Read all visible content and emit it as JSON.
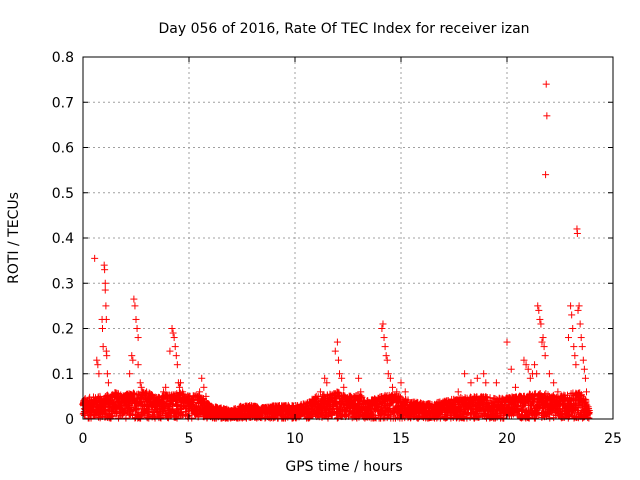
{
  "chart_data": {
    "type": "scatter",
    "title": "Day 056 of 2016, Rate Of TEC Index for receiver izan",
    "xlabel": "GPS time / hours",
    "ylabel": "ROTI / TECUs",
    "xlim": [
      0,
      25
    ],
    "ylim": [
      0,
      0.8
    ],
    "x_ticks": [
      0,
      5,
      10,
      15,
      20,
      25
    ],
    "y_ticks": [
      0,
      0.1,
      0.2,
      0.3,
      0.4,
      0.5,
      0.6,
      0.7,
      0.8
    ],
    "x_tick_labels": [
      "0",
      "5",
      "10",
      "15",
      "20",
      "25"
    ],
    "y_tick_labels": [
      "0",
      "0.1",
      "0.2",
      "0.3",
      "0.4",
      "0.5",
      "0.6",
      "0.7",
      "0.8"
    ],
    "grid": true,
    "marker": "+",
    "marker_color": "#ff0000",
    "points": [
      [
        0.55,
        0.355
      ],
      [
        0.65,
        0.13
      ],
      [
        0.7,
        0.12
      ],
      [
        0.75,
        0.1
      ],
      [
        0.8,
        0.05
      ],
      [
        0.9,
        0.22
      ],
      [
        0.92,
        0.2
      ],
      [
        0.95,
        0.16
      ],
      [
        1.0,
        0.34
      ],
      [
        1.02,
        0.33
      ],
      [
        1.05,
        0.3
      ],
      [
        1.05,
        0.285
      ],
      [
        1.08,
        0.25
      ],
      [
        1.1,
        0.22
      ],
      [
        1.1,
        0.15
      ],
      [
        1.12,
        0.14
      ],
      [
        1.15,
        0.1
      ],
      [
        1.2,
        0.08
      ],
      [
        1.3,
        0.04
      ],
      [
        1.5,
        0.05
      ],
      [
        2.2,
        0.1
      ],
      [
        2.3,
        0.14
      ],
      [
        2.35,
        0.13
      ],
      [
        2.4,
        0.265
      ],
      [
        2.45,
        0.25
      ],
      [
        2.5,
        0.22
      ],
      [
        2.55,
        0.2
      ],
      [
        2.6,
        0.18
      ],
      [
        2.6,
        0.12
      ],
      [
        2.7,
        0.08
      ],
      [
        2.75,
        0.07
      ],
      [
        2.8,
        0.06
      ],
      [
        3.0,
        0.06
      ],
      [
        3.2,
        0.05
      ],
      [
        3.8,
        0.06
      ],
      [
        3.9,
        0.07
      ],
      [
        4.1,
        0.15
      ],
      [
        4.2,
        0.2
      ],
      [
        4.25,
        0.19
      ],
      [
        4.3,
        0.18
      ],
      [
        4.35,
        0.16
      ],
      [
        4.4,
        0.14
      ],
      [
        4.45,
        0.12
      ],
      [
        4.5,
        0.08
      ],
      [
        4.55,
        0.07
      ],
      [
        4.6,
        0.08
      ],
      [
        4.7,
        0.06
      ],
      [
        5.5,
        0.06
      ],
      [
        5.6,
        0.09
      ],
      [
        5.7,
        0.07
      ],
      [
        5.8,
        0.05
      ],
      [
        11.0,
        0.05
      ],
      [
        11.2,
        0.06
      ],
      [
        11.4,
        0.09
      ],
      [
        11.5,
        0.08
      ],
      [
        11.9,
        0.15
      ],
      [
        12.0,
        0.17
      ],
      [
        12.05,
        0.13
      ],
      [
        12.1,
        0.1
      ],
      [
        12.2,
        0.09
      ],
      [
        12.3,
        0.07
      ],
      [
        13.0,
        0.09
      ],
      [
        13.1,
        0.06
      ],
      [
        14.1,
        0.2
      ],
      [
        14.15,
        0.21
      ],
      [
        14.2,
        0.18
      ],
      [
        14.25,
        0.16
      ],
      [
        14.3,
        0.14
      ],
      [
        14.35,
        0.13
      ],
      [
        14.4,
        0.1
      ],
      [
        14.5,
        0.09
      ],
      [
        14.6,
        0.07
      ],
      [
        14.8,
        0.06
      ],
      [
        15.0,
        0.08
      ],
      [
        15.2,
        0.06
      ],
      [
        17.7,
        0.06
      ],
      [
        18.0,
        0.1
      ],
      [
        18.3,
        0.08
      ],
      [
        18.6,
        0.09
      ],
      [
        18.9,
        0.1
      ],
      [
        19.0,
        0.08
      ],
      [
        19.5,
        0.08
      ],
      [
        20.0,
        0.17
      ],
      [
        20.2,
        0.11
      ],
      [
        20.4,
        0.07
      ],
      [
        20.8,
        0.13
      ],
      [
        20.9,
        0.12
      ],
      [
        21.0,
        0.11
      ],
      [
        21.1,
        0.09
      ],
      [
        21.2,
        0.1
      ],
      [
        21.3,
        0.12
      ],
      [
        21.4,
        0.1
      ],
      [
        21.45,
        0.25
      ],
      [
        21.5,
        0.24
      ],
      [
        21.55,
        0.22
      ],
      [
        21.6,
        0.21
      ],
      [
        21.65,
        0.17
      ],
      [
        21.7,
        0.18
      ],
      [
        21.75,
        0.16
      ],
      [
        21.8,
        0.14
      ],
      [
        21.82,
        0.54
      ],
      [
        21.85,
        0.74
      ],
      [
        21.88,
        0.67
      ],
      [
        22.0,
        0.1
      ],
      [
        22.2,
        0.08
      ],
      [
        22.4,
        0.06
      ],
      [
        22.9,
        0.18
      ],
      [
        23.0,
        0.25
      ],
      [
        23.05,
        0.23
      ],
      [
        23.1,
        0.2
      ],
      [
        23.15,
        0.16
      ],
      [
        23.2,
        0.14
      ],
      [
        23.25,
        0.12
      ],
      [
        23.3,
        0.42
      ],
      [
        23.32,
        0.41
      ],
      [
        23.35,
        0.24
      ],
      [
        23.4,
        0.25
      ],
      [
        23.45,
        0.21
      ],
      [
        23.5,
        0.18
      ],
      [
        23.55,
        0.16
      ],
      [
        23.6,
        0.13
      ],
      [
        23.65,
        0.11
      ],
      [
        23.7,
        0.09
      ],
      [
        23.75,
        0.06
      ]
    ],
    "baseline_band": [
      [
        0,
        0.045
      ],
      [
        0.5,
        0.05
      ],
      [
        1,
        0.05
      ],
      [
        1.5,
        0.06
      ],
      [
        2,
        0.055
      ],
      [
        2.5,
        0.06
      ],
      [
        3,
        0.06
      ],
      [
        3.5,
        0.05
      ],
      [
        4,
        0.055
      ],
      [
        4.5,
        0.06
      ],
      [
        5,
        0.05
      ],
      [
        5.5,
        0.055
      ],
      [
        6,
        0.03
      ],
      [
        6.5,
        0.025
      ],
      [
        7,
        0.02
      ],
      [
        7.5,
        0.03
      ],
      [
        8,
        0.03
      ],
      [
        8.5,
        0.025
      ],
      [
        9,
        0.03
      ],
      [
        9.5,
        0.03
      ],
      [
        10,
        0.03
      ],
      [
        10.5,
        0.035
      ],
      [
        11,
        0.05
      ],
      [
        11.5,
        0.055
      ],
      [
        12,
        0.06
      ],
      [
        12.5,
        0.05
      ],
      [
        13,
        0.055
      ],
      [
        13.5,
        0.04
      ],
      [
        14,
        0.05
      ],
      [
        14.5,
        0.055
      ],
      [
        15,
        0.05
      ],
      [
        15.5,
        0.04
      ],
      [
        16,
        0.035
      ],
      [
        16.5,
        0.035
      ],
      [
        17,
        0.04
      ],
      [
        17.5,
        0.045
      ],
      [
        18,
        0.05
      ],
      [
        18.5,
        0.05
      ],
      [
        19,
        0.05
      ],
      [
        19.5,
        0.045
      ],
      [
        20,
        0.05
      ],
      [
        20.5,
        0.05
      ],
      [
        21,
        0.055
      ],
      [
        21.5,
        0.06
      ],
      [
        22,
        0.055
      ],
      [
        22.5,
        0.05
      ],
      [
        23,
        0.06
      ],
      [
        23.5,
        0.06
      ],
      [
        23.9,
        0.03
      ]
    ]
  }
}
